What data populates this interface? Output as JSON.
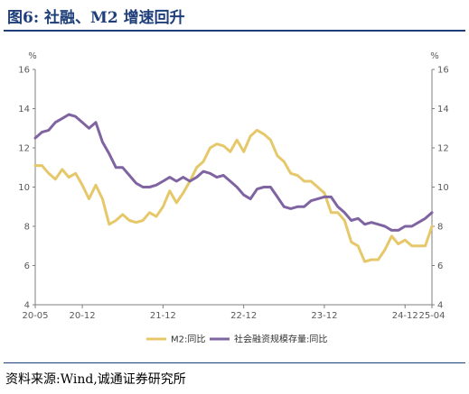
{
  "figure": {
    "title": "图6:   社融、M2 增速回升",
    "source": "资料来源:Wind,诚通证券研究所"
  },
  "chart_data": {
    "type": "line",
    "ylim": [
      4,
      16
    ],
    "y_ticks": [
      4,
      6,
      8,
      10,
      12,
      14,
      16
    ],
    "y_unit_left": "%",
    "y_unit_right": "%",
    "x_ticks": [
      "20-05",
      "20-12",
      "21-12",
      "22-12",
      "23-12",
      "24-12",
      "25-04"
    ],
    "x_tick_positions": [
      0,
      7,
      19,
      31,
      43,
      55,
      59
    ],
    "legend_position": "bottom",
    "grid": false,
    "series": [
      {
        "name": "M2:同比",
        "color": "#e6c86a",
        "values": [
          11.1,
          11.1,
          10.7,
          10.4,
          10.9,
          10.5,
          10.7,
          10.1,
          9.4,
          10.1,
          9.4,
          8.1,
          8.3,
          8.6,
          8.3,
          8.2,
          8.3,
          8.7,
          8.5,
          9.0,
          9.8,
          9.2,
          9.7,
          10.3,
          11.0,
          11.3,
          12.0,
          12.2,
          12.1,
          11.8,
          12.4,
          11.8,
          12.6,
          12.9,
          12.7,
          12.4,
          11.6,
          11.3,
          10.7,
          10.6,
          10.3,
          10.3,
          10.0,
          9.7,
          8.7,
          8.7,
          8.3,
          7.2,
          7.0,
          6.2,
          6.3,
          6.3,
          6.8,
          7.5,
          7.1,
          7.3,
          7.0,
          7.0,
          7.0,
          8.0
        ]
      },
      {
        "name": "社会融资规模存量:同比",
        "color": "#8064a2",
        "values": [
          12.5,
          12.8,
          12.9,
          13.3,
          13.5,
          13.7,
          13.6,
          13.3,
          13.0,
          13.3,
          12.3,
          11.7,
          11.0,
          11.0,
          10.6,
          10.2,
          10.0,
          10.0,
          10.1,
          10.3,
          10.5,
          10.3,
          10.5,
          10.3,
          10.5,
          10.8,
          10.7,
          10.5,
          10.6,
          10.3,
          10.0,
          9.6,
          9.4,
          9.9,
          10.0,
          10.0,
          9.5,
          9.0,
          8.9,
          9.0,
          9.0,
          9.3,
          9.4,
          9.5,
          9.5,
          9.0,
          8.7,
          8.3,
          8.4,
          8.1,
          8.2,
          8.1,
          8.0,
          7.8,
          7.8,
          8.0,
          8.0,
          8.2,
          8.4,
          8.7
        ]
      }
    ]
  }
}
